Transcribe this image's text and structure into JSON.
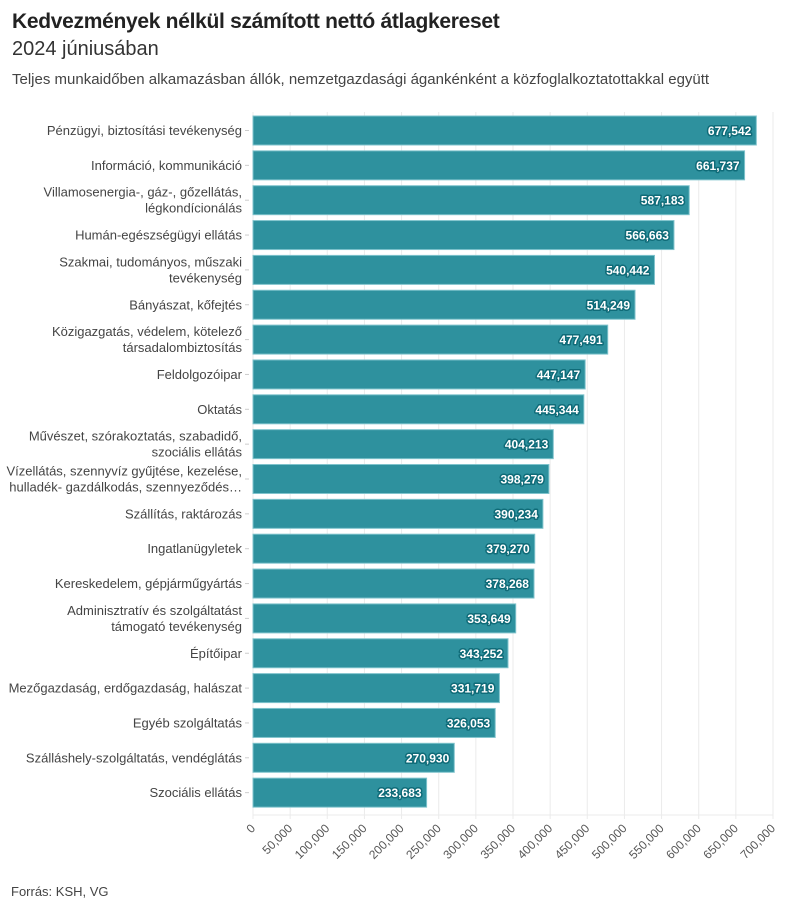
{
  "header": {
    "title": "Kedvezmények nélkül számított nettó átlagkereset",
    "subtitle": "2024 júniusában",
    "description": "Teljes munkaidőben alkamazásban állók, nemzetgazdasági ágankénként a közfoglalkoztatottakkal együtt"
  },
  "footer": {
    "source": "Forrás: KSH, VG"
  },
  "colors": {
    "bar": "#2e919e",
    "bar_border": "#7fc3cc",
    "grid": "#ebebeb",
    "label_halo": "#0f6b78"
  },
  "chart_data": {
    "type": "bar",
    "orientation": "horizontal",
    "title": "Kedvezmények nélkül számított nettó átlagkereset",
    "subtitle": "2024 júniusában",
    "xlabel": "",
    "ylabel": "",
    "xlim": [
      0,
      700000
    ],
    "xticks": [
      0,
      50000,
      100000,
      150000,
      200000,
      250000,
      300000,
      350000,
      400000,
      450000,
      500000,
      550000,
      600000,
      650000,
      700000
    ],
    "xtick_labels": [
      "0",
      "50,000",
      "100,000",
      "150,000",
      "200,000",
      "250,000",
      "300,000",
      "350,000",
      "400,000",
      "450,000",
      "500,000",
      "550,000",
      "600,000",
      "650,000",
      "700,000"
    ],
    "grid": "vertical",
    "legend": "none",
    "categories": [
      [
        "Pénzügyi, biztosítási tevékenység"
      ],
      [
        "Információ, kommunikáció"
      ],
      [
        "Villamosenergia-, gáz-, gőzellátás,",
        "légkondícionálás"
      ],
      [
        "Humán-egészségügyi ellátás"
      ],
      [
        "Szakmai, tudományos, műszaki",
        "tevékenység"
      ],
      [
        "Bányászat, kőfejtés"
      ],
      [
        "Közigazgatás, védelem, kötelező",
        "társadalombiztosítás"
      ],
      [
        "Feldolgozóipar"
      ],
      [
        "Oktatás"
      ],
      [
        "Művészet, szórakoztatás, szabadidő,",
        "szociális ellátás"
      ],
      [
        "Vízellátás, szennyvíz gyűjtése, kezelése,",
        "hulladék- gazdálkodás, szennyeződés…"
      ],
      [
        "Szállítás, raktározás"
      ],
      [
        "Ingatlanügyletek"
      ],
      [
        "Kereskedelem, gépjárműgyártás"
      ],
      [
        "Adminisztratív és szolgáltatást",
        "támogató tevékenység"
      ],
      [
        "Építőipar"
      ],
      [
        "Mezőgazdaság, erdőgazdaság, halászat"
      ],
      [
        "Egyéb szolgáltatás"
      ],
      [
        "Szálláshely-szolgáltatás, vendéglátás"
      ],
      [
        "Szociális ellátás"
      ]
    ],
    "values": [
      677542,
      661737,
      587183,
      566663,
      540442,
      514249,
      477491,
      447147,
      445344,
      404213,
      398279,
      390234,
      379270,
      378268,
      353649,
      343252,
      331719,
      326053,
      270930,
      233683
    ],
    "value_labels": [
      "677,542",
      "661,737",
      "587,183",
      "566,663",
      "540,442",
      "514,249",
      "477,491",
      "447,147",
      "445,344",
      "404,213",
      "398,279",
      "390,234",
      "379,270",
      "378,268",
      "353,649",
      "343,252",
      "331,719",
      "326,053",
      "270,930",
      "233,683"
    ]
  }
}
